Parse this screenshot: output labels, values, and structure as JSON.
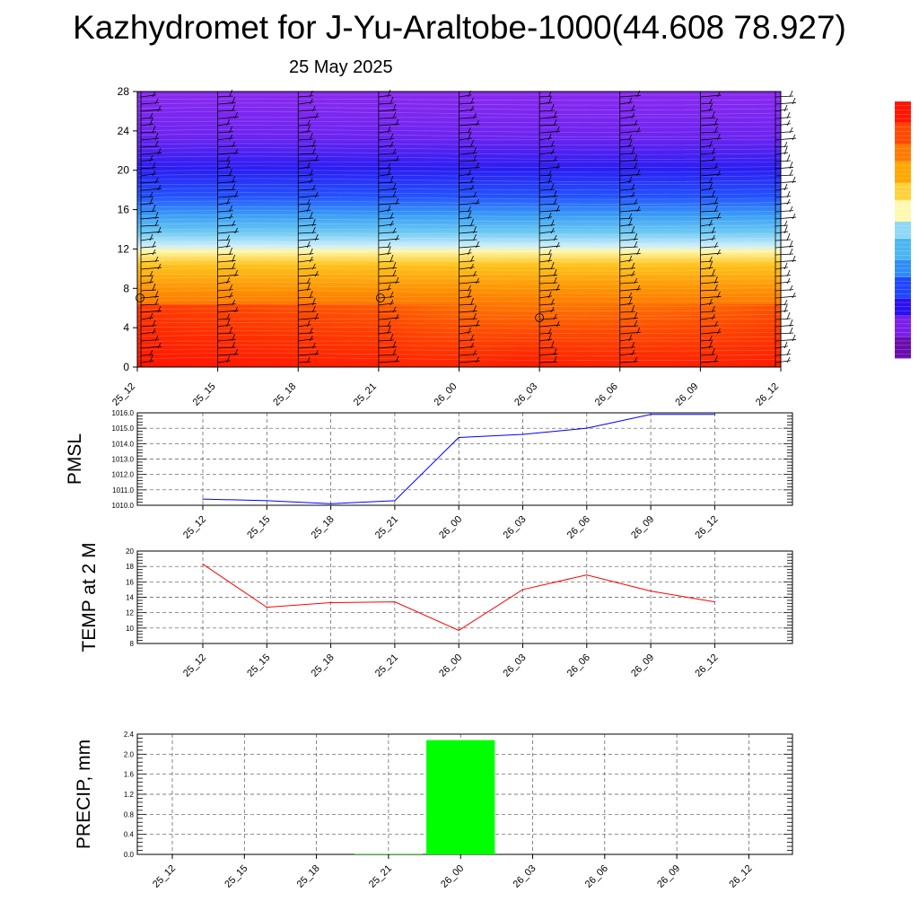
{
  "title": "Kazhydromet for J-Yu-Araltobe-1000(44.608 78.927)",
  "date": "25 May 2025",
  "chart_data": [
    {
      "type": "heatmap",
      "name": "vertical-cross-section",
      "x_ticks": [
        "25_12",
        "25_15",
        "25_18",
        "25_21",
        "26_00",
        "26_03",
        "26_06",
        "26_09",
        "26_12"
      ],
      "y_ticks": [
        0,
        4,
        8,
        12,
        16,
        20,
        24,
        28
      ],
      "ylim": [
        0,
        28
      ],
      "colorbar_colors": [
        "#6a0dad",
        "#7a1ee8",
        "#2a10f0",
        "#2045ff",
        "#2f8cf5",
        "#4ab6f0",
        "#8fd8f5",
        "#fff8b0",
        "#ffd23a",
        "#ffa800",
        "#ff7a00",
        "#ff4800",
        "#ff1500"
      ],
      "annotation_circles_at": [
        "25_12",
        "25_21",
        "26_03"
      ]
    },
    {
      "type": "line",
      "name": "pmsl",
      "ylabel": "PMSL",
      "x": [
        "25_12",
        "25_15",
        "25_18",
        "25_21",
        "26_00",
        "26_03",
        "26_06",
        "26_09",
        "26_12"
      ],
      "values": [
        1010.4,
        1010.3,
        1010.1,
        1010.3,
        1014.4,
        1014.6,
        1015.0,
        1015.9,
        1015.9
      ],
      "y_ticks": [
        "1010.0",
        "1011.0",
        "1012.0",
        "1013.0",
        "1014.0",
        "1015.0",
        "1016.0"
      ],
      "ylim": [
        1010,
        1016
      ],
      "color": "#0000ff",
      "grid": true
    },
    {
      "type": "line",
      "name": "temp2m",
      "ylabel": "TEMP at 2 M",
      "x": [
        "25_12",
        "25_15",
        "25_18",
        "25_21",
        "26_00",
        "26_03",
        "26_06",
        "26_09",
        "26_12"
      ],
      "values": [
        18.3,
        12.7,
        13.3,
        13.4,
        9.7,
        15.0,
        16.9,
        14.8,
        13.4
      ],
      "y_ticks": [
        "8",
        "10",
        "12",
        "14",
        "16",
        "18",
        "20"
      ],
      "ylim": [
        8,
        20
      ],
      "color": "#ff0000",
      "grid": true
    },
    {
      "type": "bar",
      "name": "precip",
      "ylabel": "PRECIP, mm",
      "x": [
        "25_12",
        "25_15",
        "25_18",
        "25_21",
        "26_00",
        "26_03",
        "26_06",
        "26_09",
        "26_12"
      ],
      "values": [
        0,
        0,
        0,
        0.01,
        2.28,
        0,
        0,
        0,
        0
      ],
      "y_ticks": [
        "0.0",
        "0.4",
        "0.8",
        "1.2",
        "1.6",
        "2.0",
        "2.4"
      ],
      "ylim": [
        0,
        2.4
      ],
      "color": "#00ff00",
      "grid": true
    }
  ]
}
